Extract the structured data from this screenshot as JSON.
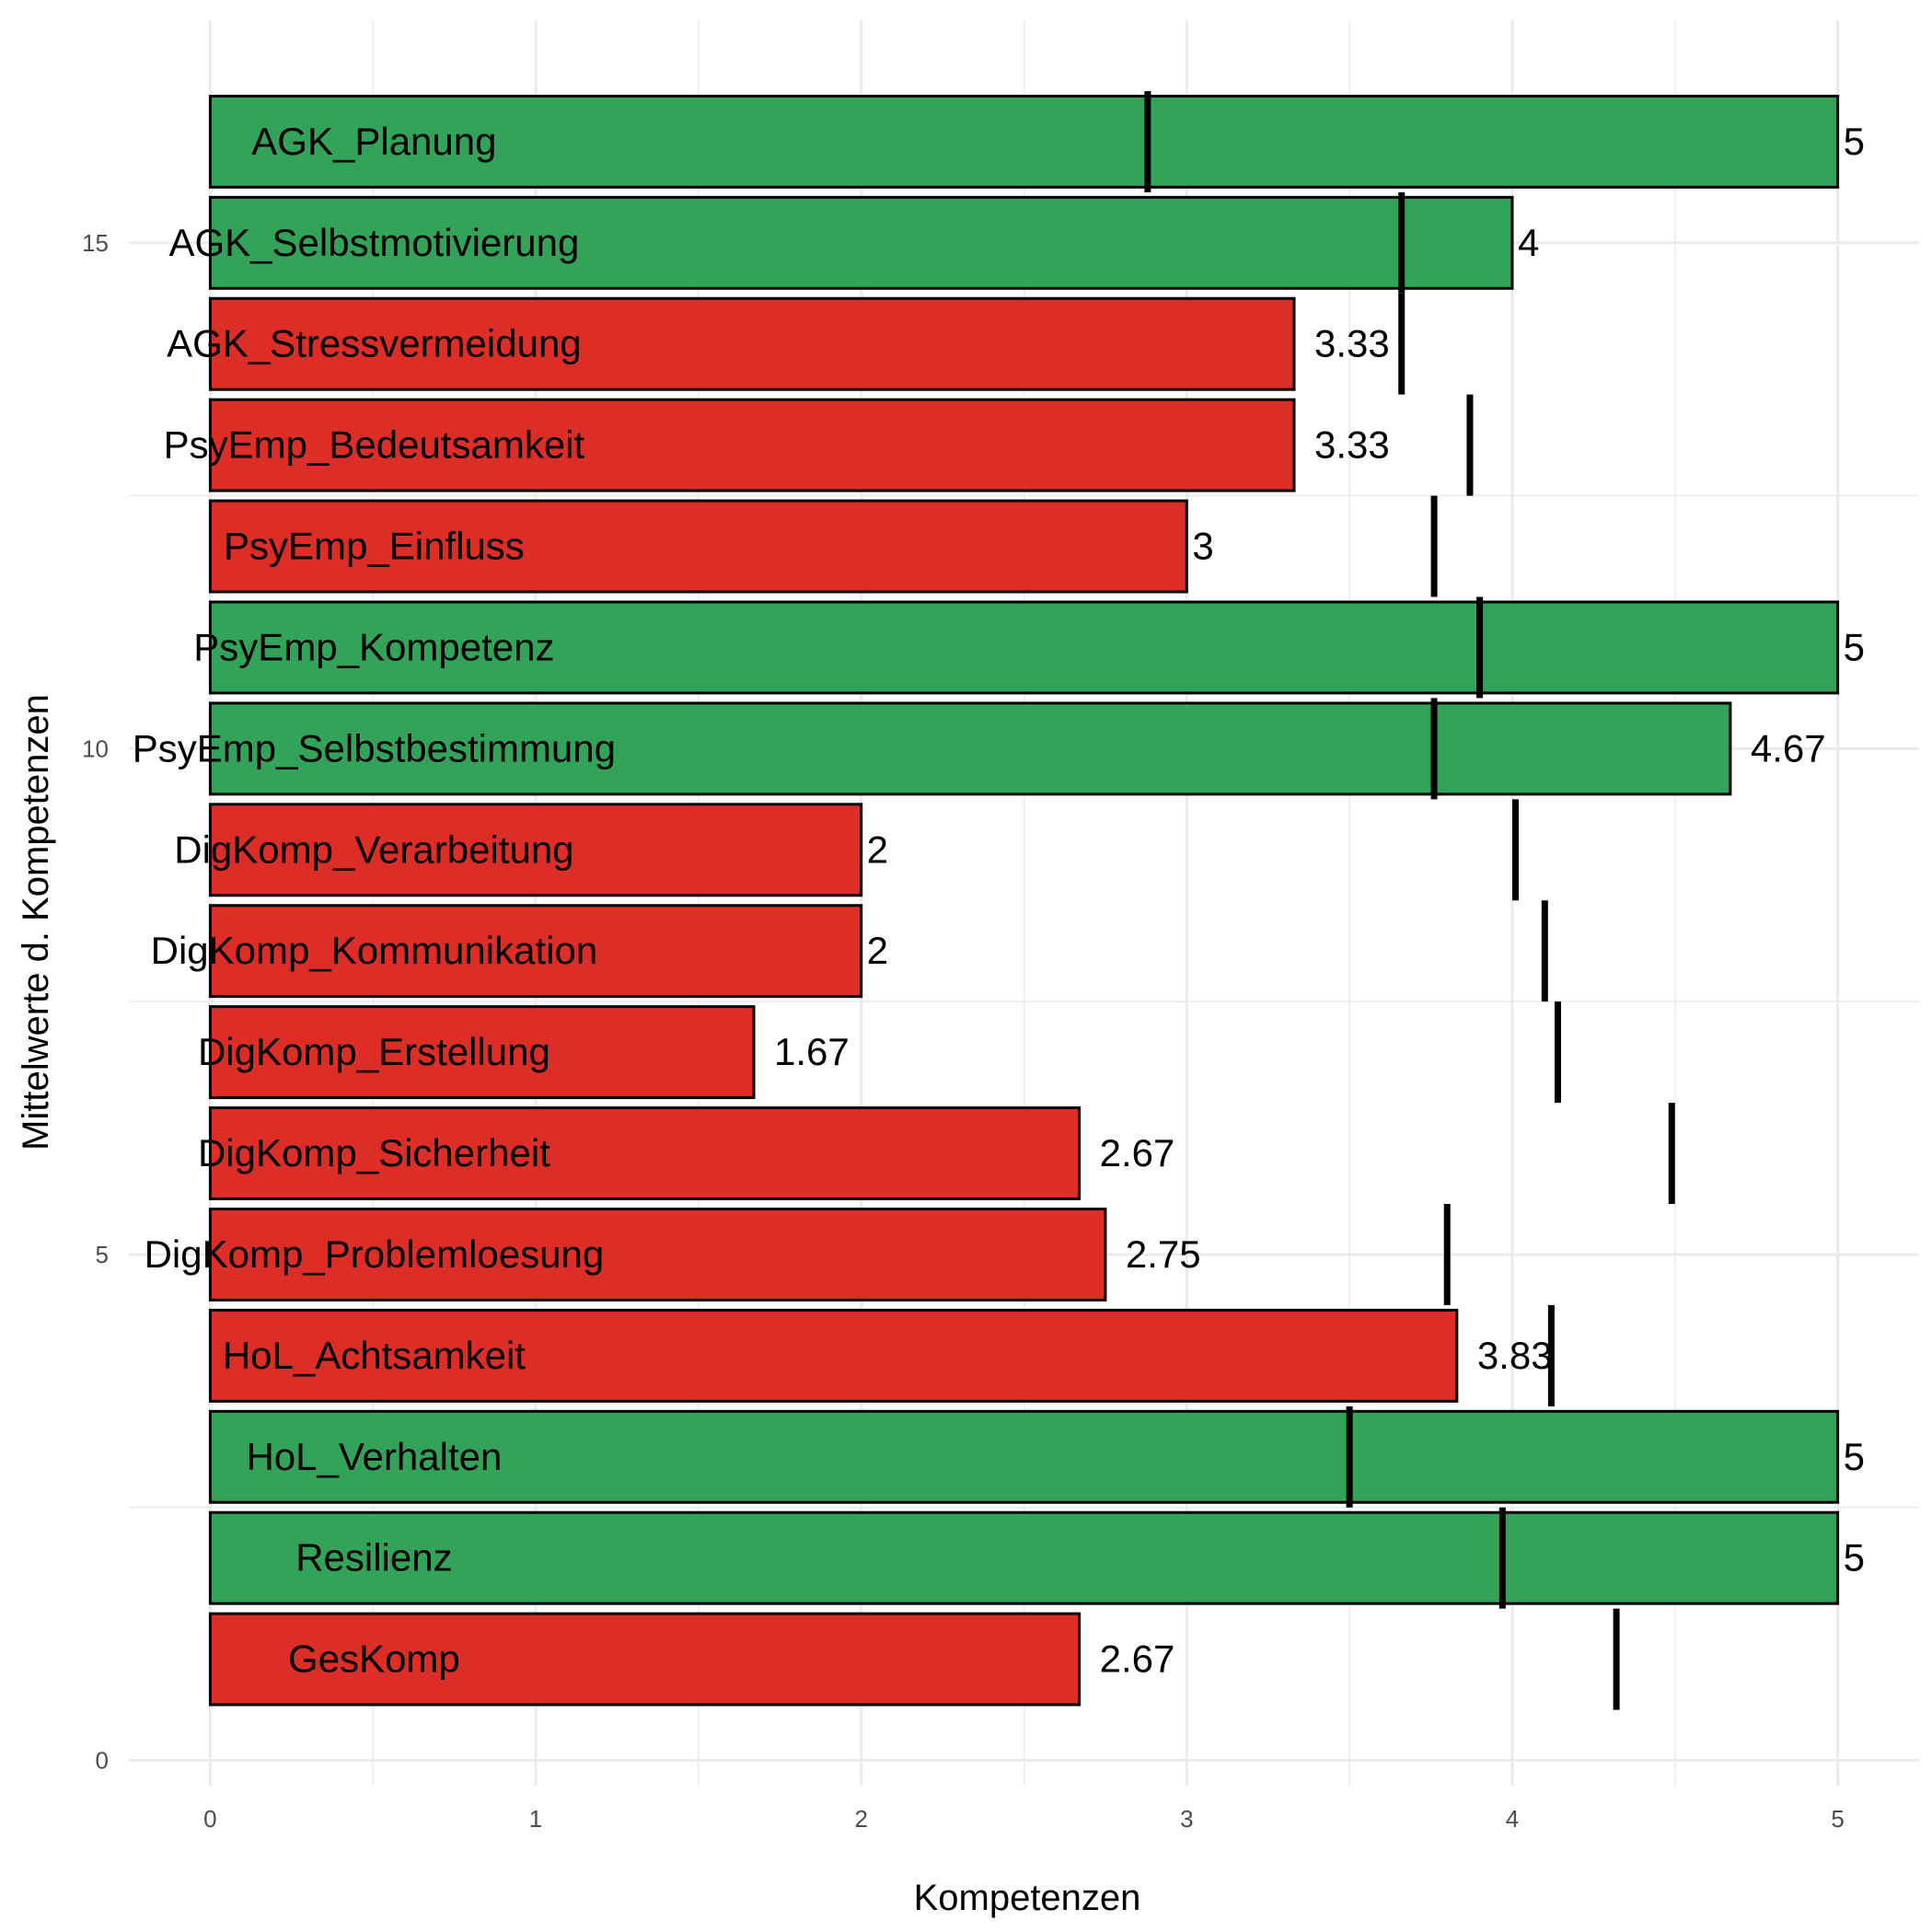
{
  "chart_data": {
    "type": "bar",
    "orientation": "horizontal",
    "xlabel": "Kompetenzen",
    "ylabel": "Mittelwerte d. Kompetenzen",
    "xlim": [
      -0.25,
      5.25
    ],
    "ylim": [
      -0.25,
      17.2
    ],
    "x_ticks": [
      "0",
      "1",
      "2",
      "3",
      "4",
      "5"
    ],
    "y_ticks": [
      "0",
      "5",
      "10",
      "15"
    ],
    "grid": true,
    "colors": {
      "above": "#33a35a",
      "below": "#dd2d27",
      "marker": "#000000"
    },
    "bars": [
      {
        "label": "AGK_Planung",
        "value": 5,
        "value_label": "5",
        "y": 16,
        "reference": 2.88,
        "color": "#33a35a"
      },
      {
        "label": "AGK_Selbstmotivierung",
        "value": 4,
        "value_label": "4",
        "y": 15,
        "reference": 3.66,
        "color": "#33a35a"
      },
      {
        "label": "AGK_Stressvermeidung",
        "value": 3.33,
        "value_label": "3.33",
        "y": 14,
        "reference": 3.66,
        "color": "#dd2d27"
      },
      {
        "label": "PsyEmp_Bedeutsamkeit",
        "value": 3.33,
        "value_label": "3.33",
        "y": 13,
        "reference": 3.87,
        "color": "#dd2d27"
      },
      {
        "label": "PsyEmp_Einfluss",
        "value": 3,
        "value_label": "3",
        "y": 12,
        "reference": 3.76,
        "color": "#dd2d27"
      },
      {
        "label": "PsyEmp_Kompetenz",
        "value": 5,
        "value_label": "5",
        "y": 11,
        "reference": 3.9,
        "color": "#33a35a"
      },
      {
        "label": "PsyEmp_Selbstbestimmung",
        "value": 4.67,
        "value_label": "4.67",
        "y": 10,
        "reference": 3.76,
        "color": "#33a35a"
      },
      {
        "label": "DigKomp_Verarbeitung",
        "value": 2,
        "value_label": "2",
        "y": 9,
        "reference": 4.01,
        "color": "#dd2d27"
      },
      {
        "label": "DigKomp_Kommunikation",
        "value": 2,
        "value_label": "2",
        "y": 8,
        "reference": 4.1,
        "color": "#dd2d27"
      },
      {
        "label": "DigKomp_Erstellung",
        "value": 1.67,
        "value_label": "1.67",
        "y": 7,
        "reference": 4.14,
        "color": "#dd2d27"
      },
      {
        "label": "DigKomp_Sicherheit",
        "value": 2.67,
        "value_label": "2.67",
        "y": 6,
        "reference": 4.49,
        "color": "#dd2d27"
      },
      {
        "label": "DigKomp_Problemloesung",
        "value": 2.75,
        "value_label": "2.75",
        "y": 5,
        "reference": 3.8,
        "color": "#dd2d27"
      },
      {
        "label": "HoL_Achtsamkeit",
        "value": 3.83,
        "value_label": "3.83",
        "y": 4,
        "reference": 4.12,
        "color": "#dd2d27"
      },
      {
        "label": "HoL_Verhalten",
        "value": 5,
        "value_label": "5",
        "y": 3,
        "reference": 3.5,
        "color": "#33a35a"
      },
      {
        "label": "Resilienz",
        "value": 5,
        "value_label": "5",
        "y": 2,
        "reference": 3.97,
        "color": "#33a35a"
      },
      {
        "label": "GesKomp",
        "value": 2.67,
        "value_label": "2.67",
        "y": 1,
        "reference": 4.32,
        "color": "#dd2d27"
      }
    ]
  }
}
